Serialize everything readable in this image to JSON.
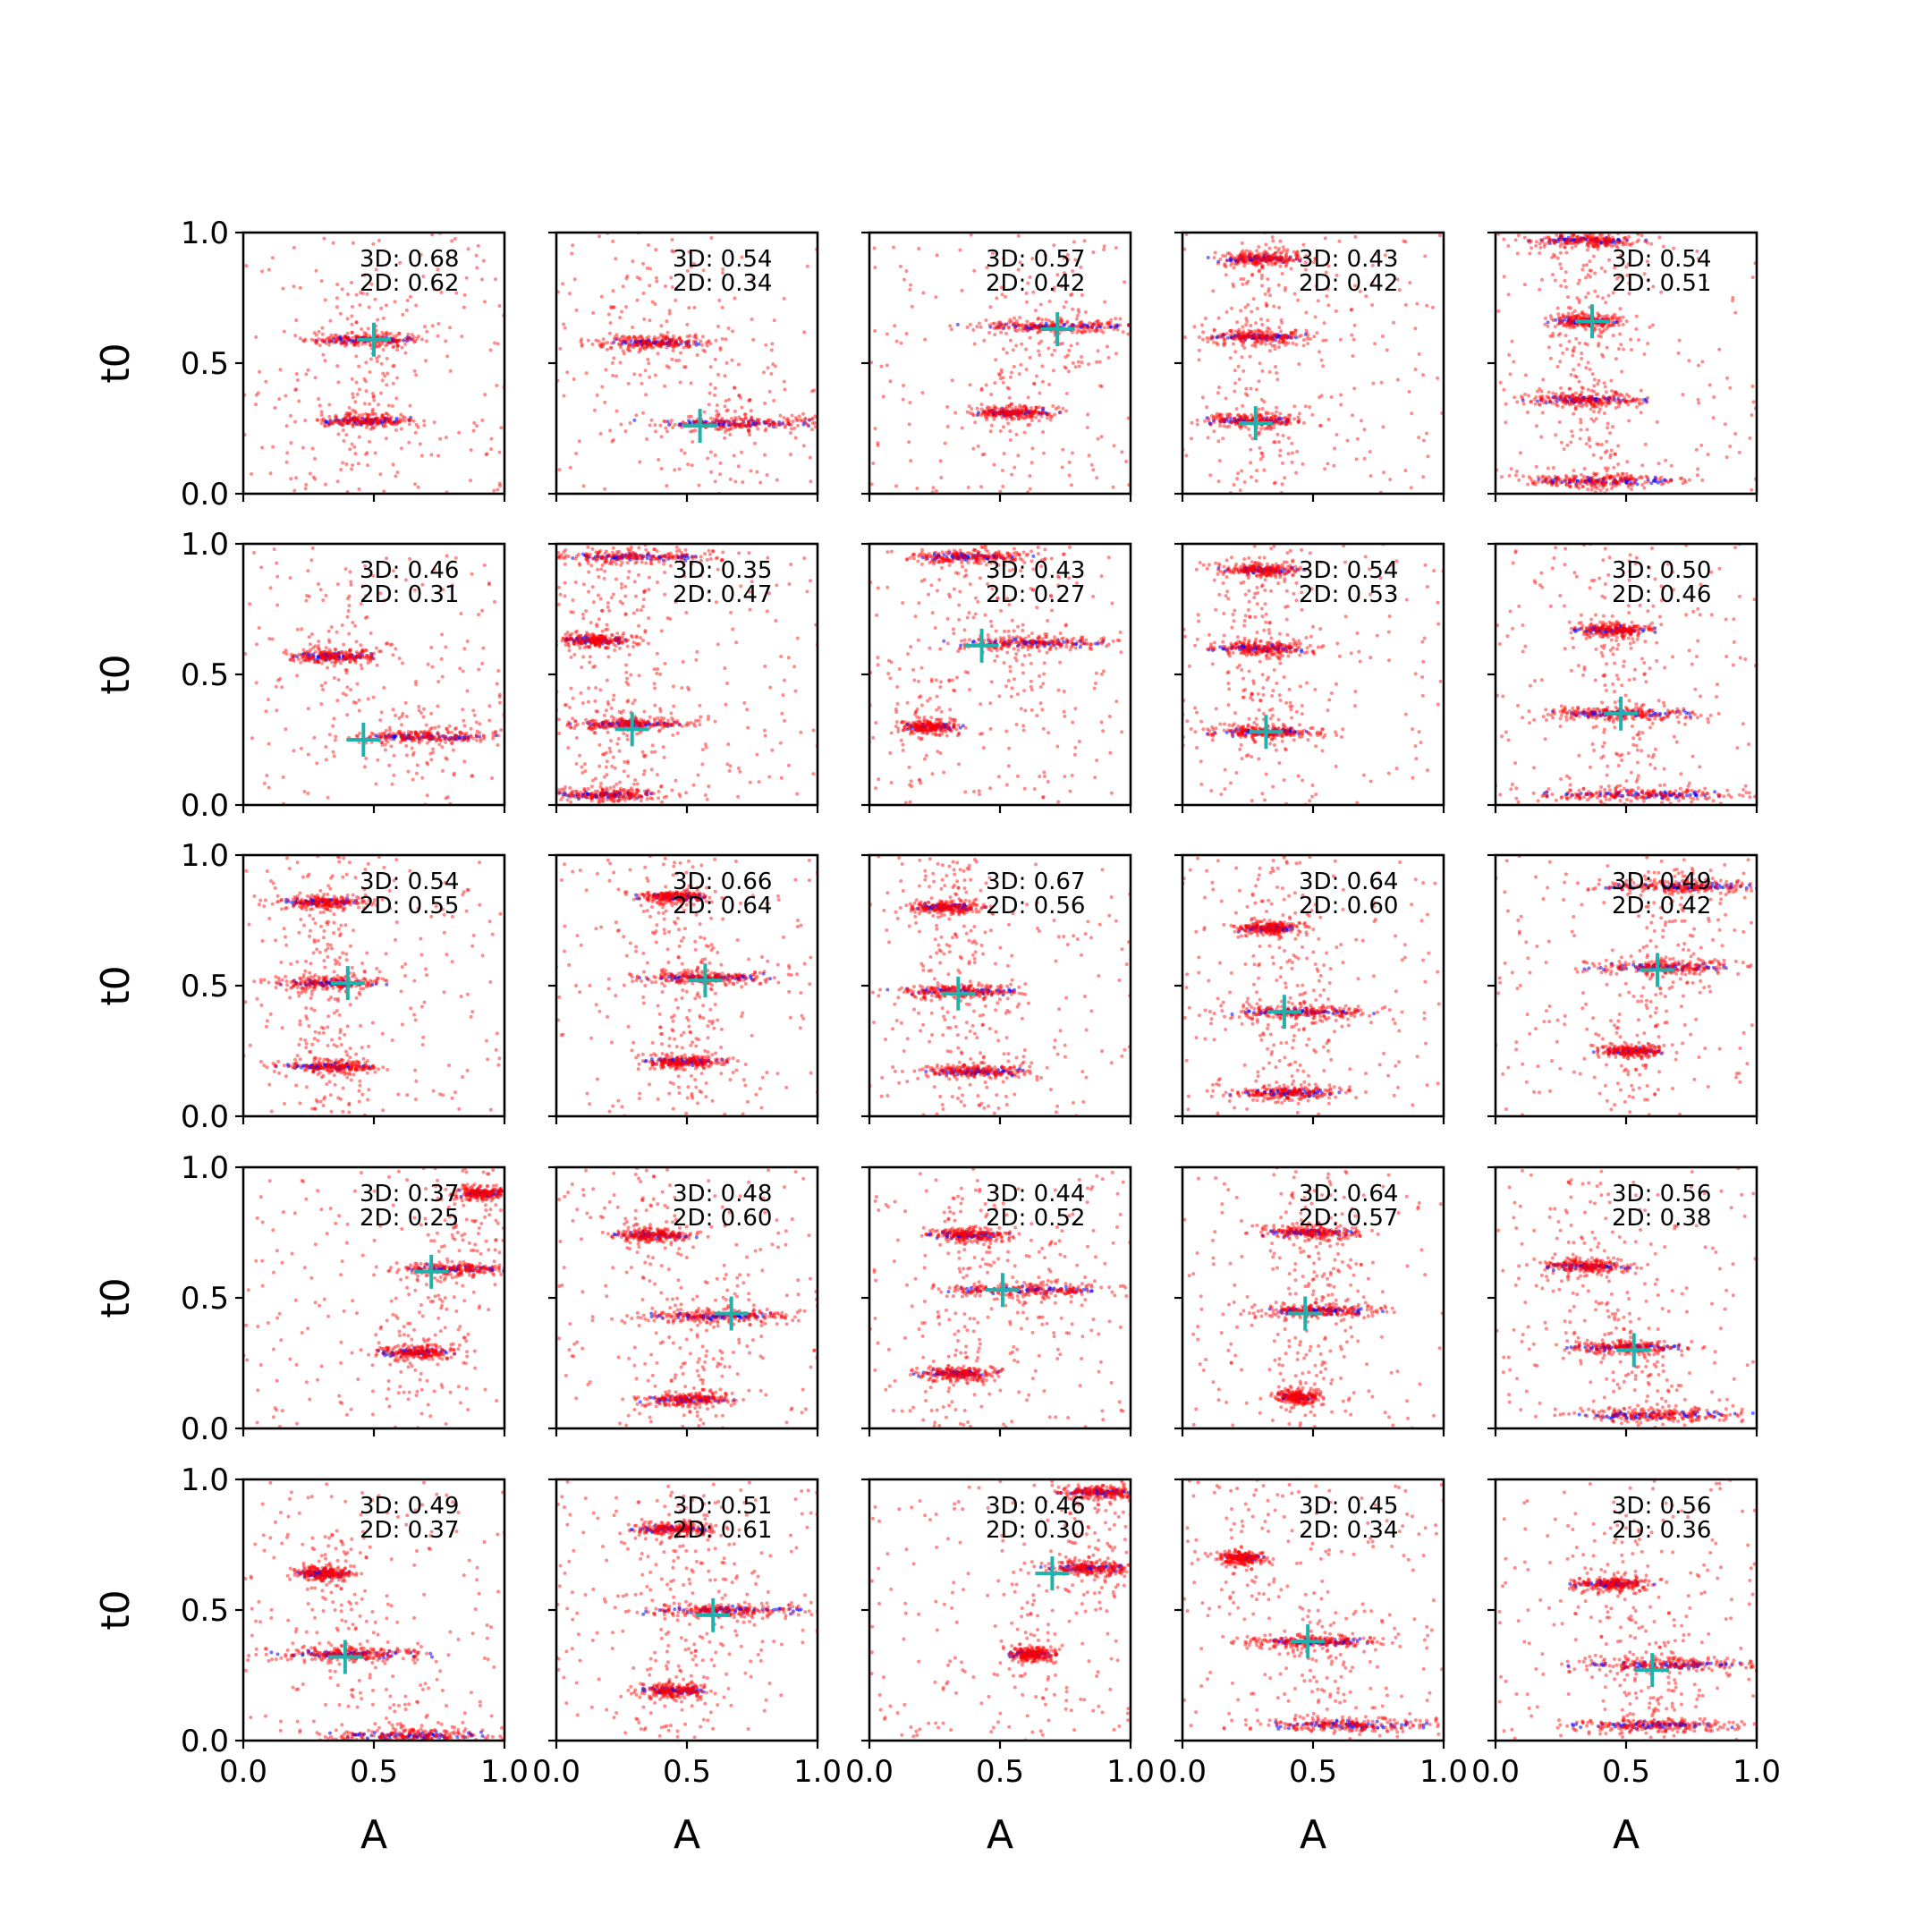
{
  "chart_data": {
    "type": "scatter",
    "grid_rows": 5,
    "grid_cols": 5,
    "xlabel": "A",
    "ylabel": "t0",
    "xlim": [
      0.0,
      1.0
    ],
    "ylim": [
      0.0,
      1.0
    ],
    "xticks": [
      0.0,
      0.5,
      1.0
    ],
    "yticks": [
      0.0,
      0.5,
      1.0
    ],
    "xtick_labels": [
      "0.0",
      "0.5",
      "1.0"
    ],
    "ytick_labels": [
      "0.0",
      "0.5",
      "1.0"
    ],
    "grid": false,
    "colors": {
      "red_points": "#ff0000",
      "blue_points": "#0000ff",
      "marker": "#20b2aa"
    },
    "panels": [
      {
        "score_3d": "3D: 0.68",
        "score_2d": "2D: 0.62",
        "marker": [
          0.5,
          0.59
        ],
        "bands": [
          [
            0.59,
            0.46,
            0.2
          ],
          [
            0.28,
            0.46,
            0.18
          ]
        ]
      },
      {
        "score_3d": "3D: 0.54",
        "score_2d": "2D: 0.34",
        "marker": [
          0.55,
          0.26
        ],
        "bands": [
          [
            0.58,
            0.37,
            0.18
          ],
          [
            0.27,
            0.7,
            0.3
          ]
        ]
      },
      {
        "score_3d": "3D: 0.57",
        "score_2d": "2D: 0.42",
        "marker": [
          0.72,
          0.63
        ],
        "bands": [
          [
            0.64,
            0.72,
            0.3
          ],
          [
            0.31,
            0.55,
            0.14
          ]
        ]
      },
      {
        "score_3d": "3D: 0.43",
        "score_2d": "2D: 0.42",
        "marker": [
          0.28,
          0.27
        ],
        "bands": [
          [
            0.9,
            0.3,
            0.14
          ],
          [
            0.6,
            0.28,
            0.18
          ],
          [
            0.28,
            0.28,
            0.18
          ]
        ]
      },
      {
        "score_3d": "3D: 0.54",
        "score_2d": "2D: 0.51",
        "marker": [
          0.37,
          0.66
        ],
        "bands": [
          [
            0.97,
            0.35,
            0.2
          ],
          [
            0.66,
            0.35,
            0.12
          ],
          [
            0.36,
            0.35,
            0.2
          ],
          [
            0.05,
            0.4,
            0.3
          ]
        ]
      },
      {
        "score_3d": "3D: 0.46",
        "score_2d": "2D: 0.31",
        "marker": [
          0.46,
          0.25
        ],
        "bands": [
          [
            0.57,
            0.35,
            0.16
          ],
          [
            0.26,
            0.7,
            0.3
          ]
        ]
      },
      {
        "score_3d": "3D: 0.35",
        "score_2d": "2D: 0.47",
        "marker": [
          0.29,
          0.29
        ],
        "bands": [
          [
            0.95,
            0.3,
            0.3
          ],
          [
            0.63,
            0.15,
            0.14
          ],
          [
            0.31,
            0.3,
            0.22
          ],
          [
            0.04,
            0.2,
            0.2
          ]
        ]
      },
      {
        "score_3d": "3D: 0.43",
        "score_2d": "2D: 0.27",
        "marker": [
          0.43,
          0.61
        ],
        "bands": [
          [
            0.95,
            0.38,
            0.22
          ],
          [
            0.62,
            0.6,
            0.28
          ],
          [
            0.3,
            0.23,
            0.1
          ]
        ]
      },
      {
        "score_3d": "3D: 0.54",
        "score_2d": "2D: 0.53",
        "marker": [
          0.32,
          0.28
        ],
        "bands": [
          [
            0.9,
            0.3,
            0.14
          ],
          [
            0.6,
            0.3,
            0.18
          ],
          [
            0.28,
            0.32,
            0.2
          ]
        ]
      },
      {
        "score_3d": "3D: 0.50",
        "score_2d": "2D: 0.46",
        "marker": [
          0.48,
          0.35
        ],
        "bands": [
          [
            0.67,
            0.45,
            0.14
          ],
          [
            0.35,
            0.48,
            0.28
          ],
          [
            0.04,
            0.55,
            0.35
          ]
        ]
      },
      {
        "score_3d": "3D: 0.54",
        "score_2d": "2D: 0.55",
        "marker": [
          0.4,
          0.51
        ],
        "bands": [
          [
            0.82,
            0.3,
            0.16
          ],
          [
            0.51,
            0.33,
            0.2
          ],
          [
            0.19,
            0.33,
            0.18
          ]
        ]
      },
      {
        "score_3d": "3D: 0.66",
        "score_2d": "2D: 0.64",
        "marker": [
          0.57,
          0.52
        ],
        "bands": [
          [
            0.84,
            0.45,
            0.12
          ],
          [
            0.53,
            0.55,
            0.24
          ],
          [
            0.21,
            0.5,
            0.14
          ]
        ]
      },
      {
        "score_3d": "3D: 0.67",
        "score_2d": "2D: 0.56",
        "marker": [
          0.34,
          0.47
        ],
        "bands": [
          [
            0.8,
            0.3,
            0.14
          ],
          [
            0.48,
            0.35,
            0.22
          ],
          [
            0.17,
            0.4,
            0.2
          ]
        ]
      },
      {
        "score_3d": "3D: 0.64",
        "score_2d": "2D: 0.60",
        "marker": [
          0.39,
          0.4
        ],
        "bands": [
          [
            0.72,
            0.33,
            0.12
          ],
          [
            0.4,
            0.45,
            0.26
          ],
          [
            0.09,
            0.4,
            0.2
          ]
        ]
      },
      {
        "score_3d": "3D: 0.49",
        "score_2d": "2D: 0.42",
        "marker": [
          0.62,
          0.56
        ],
        "bands": [
          [
            0.88,
            0.72,
            0.28
          ],
          [
            0.57,
            0.65,
            0.26
          ],
          [
            0.25,
            0.52,
            0.12
          ]
        ]
      },
      {
        "score_3d": "3D: 0.37",
        "score_2d": "2D: 0.25",
        "marker": [
          0.72,
          0.6
        ],
        "bands": [
          [
            0.9,
            0.92,
            0.1
          ],
          [
            0.61,
            0.8,
            0.2
          ],
          [
            0.29,
            0.66,
            0.14
          ]
        ]
      },
      {
        "score_3d": "3D: 0.48",
        "score_2d": "2D: 0.60",
        "marker": [
          0.67,
          0.44
        ],
        "bands": [
          [
            0.74,
            0.37,
            0.14
          ],
          [
            0.43,
            0.62,
            0.28
          ],
          [
            0.11,
            0.5,
            0.16
          ]
        ]
      },
      {
        "score_3d": "3D: 0.44",
        "score_2d": "2D: 0.52",
        "marker": [
          0.51,
          0.53
        ],
        "bands": [
          [
            0.74,
            0.38,
            0.14
          ],
          [
            0.53,
            0.6,
            0.34
          ],
          [
            0.21,
            0.33,
            0.14
          ]
        ]
      },
      {
        "score_3d": "3D: 0.64",
        "score_2d": "2D: 0.57",
        "marker": [
          0.47,
          0.44
        ],
        "bands": [
          [
            0.75,
            0.5,
            0.18
          ],
          [
            0.45,
            0.52,
            0.22
          ],
          [
            0.12,
            0.44,
            0.08
          ]
        ]
      },
      {
        "score_3d": "3D: 0.56",
        "score_2d": "2D: 0.38",
        "marker": [
          0.53,
          0.3
        ],
        "bands": [
          [
            0.62,
            0.35,
            0.14
          ],
          [
            0.31,
            0.5,
            0.2
          ],
          [
            0.05,
            0.6,
            0.3
          ]
        ]
      },
      {
        "score_3d": "3D: 0.49",
        "score_2d": "2D: 0.37",
        "marker": [
          0.39,
          0.32
        ],
        "bands": [
          [
            0.64,
            0.3,
            0.1
          ],
          [
            0.33,
            0.4,
            0.26
          ],
          [
            0.02,
            0.65,
            0.32
          ]
        ]
      },
      {
        "score_3d": "3D: 0.51",
        "score_2d": "2D: 0.61",
        "marker": [
          0.6,
          0.48
        ],
        "bands": [
          [
            0.81,
            0.45,
            0.14
          ],
          [
            0.5,
            0.65,
            0.3
          ],
          [
            0.19,
            0.45,
            0.12
          ]
        ]
      },
      {
        "score_3d": "3D: 0.46",
        "score_2d": "2D: 0.30",
        "marker": [
          0.7,
          0.64
        ],
        "bands": [
          [
            0.95,
            0.88,
            0.14
          ],
          [
            0.66,
            0.85,
            0.18
          ],
          [
            0.33,
            0.62,
            0.08
          ]
        ]
      },
      {
        "score_3d": "3D: 0.45",
        "score_2d": "2D: 0.34",
        "marker": [
          0.48,
          0.38
        ],
        "bands": [
          [
            0.7,
            0.23,
            0.08
          ],
          [
            0.38,
            0.5,
            0.24
          ],
          [
            0.06,
            0.62,
            0.3
          ]
        ]
      },
      {
        "score_3d": "3D: 0.56",
        "score_2d": "2D: 0.36",
        "marker": [
          0.6,
          0.27
        ],
        "bands": [
          [
            0.6,
            0.45,
            0.14
          ],
          [
            0.29,
            0.65,
            0.3
          ],
          [
            0.06,
            0.6,
            0.3
          ]
        ]
      }
    ]
  }
}
